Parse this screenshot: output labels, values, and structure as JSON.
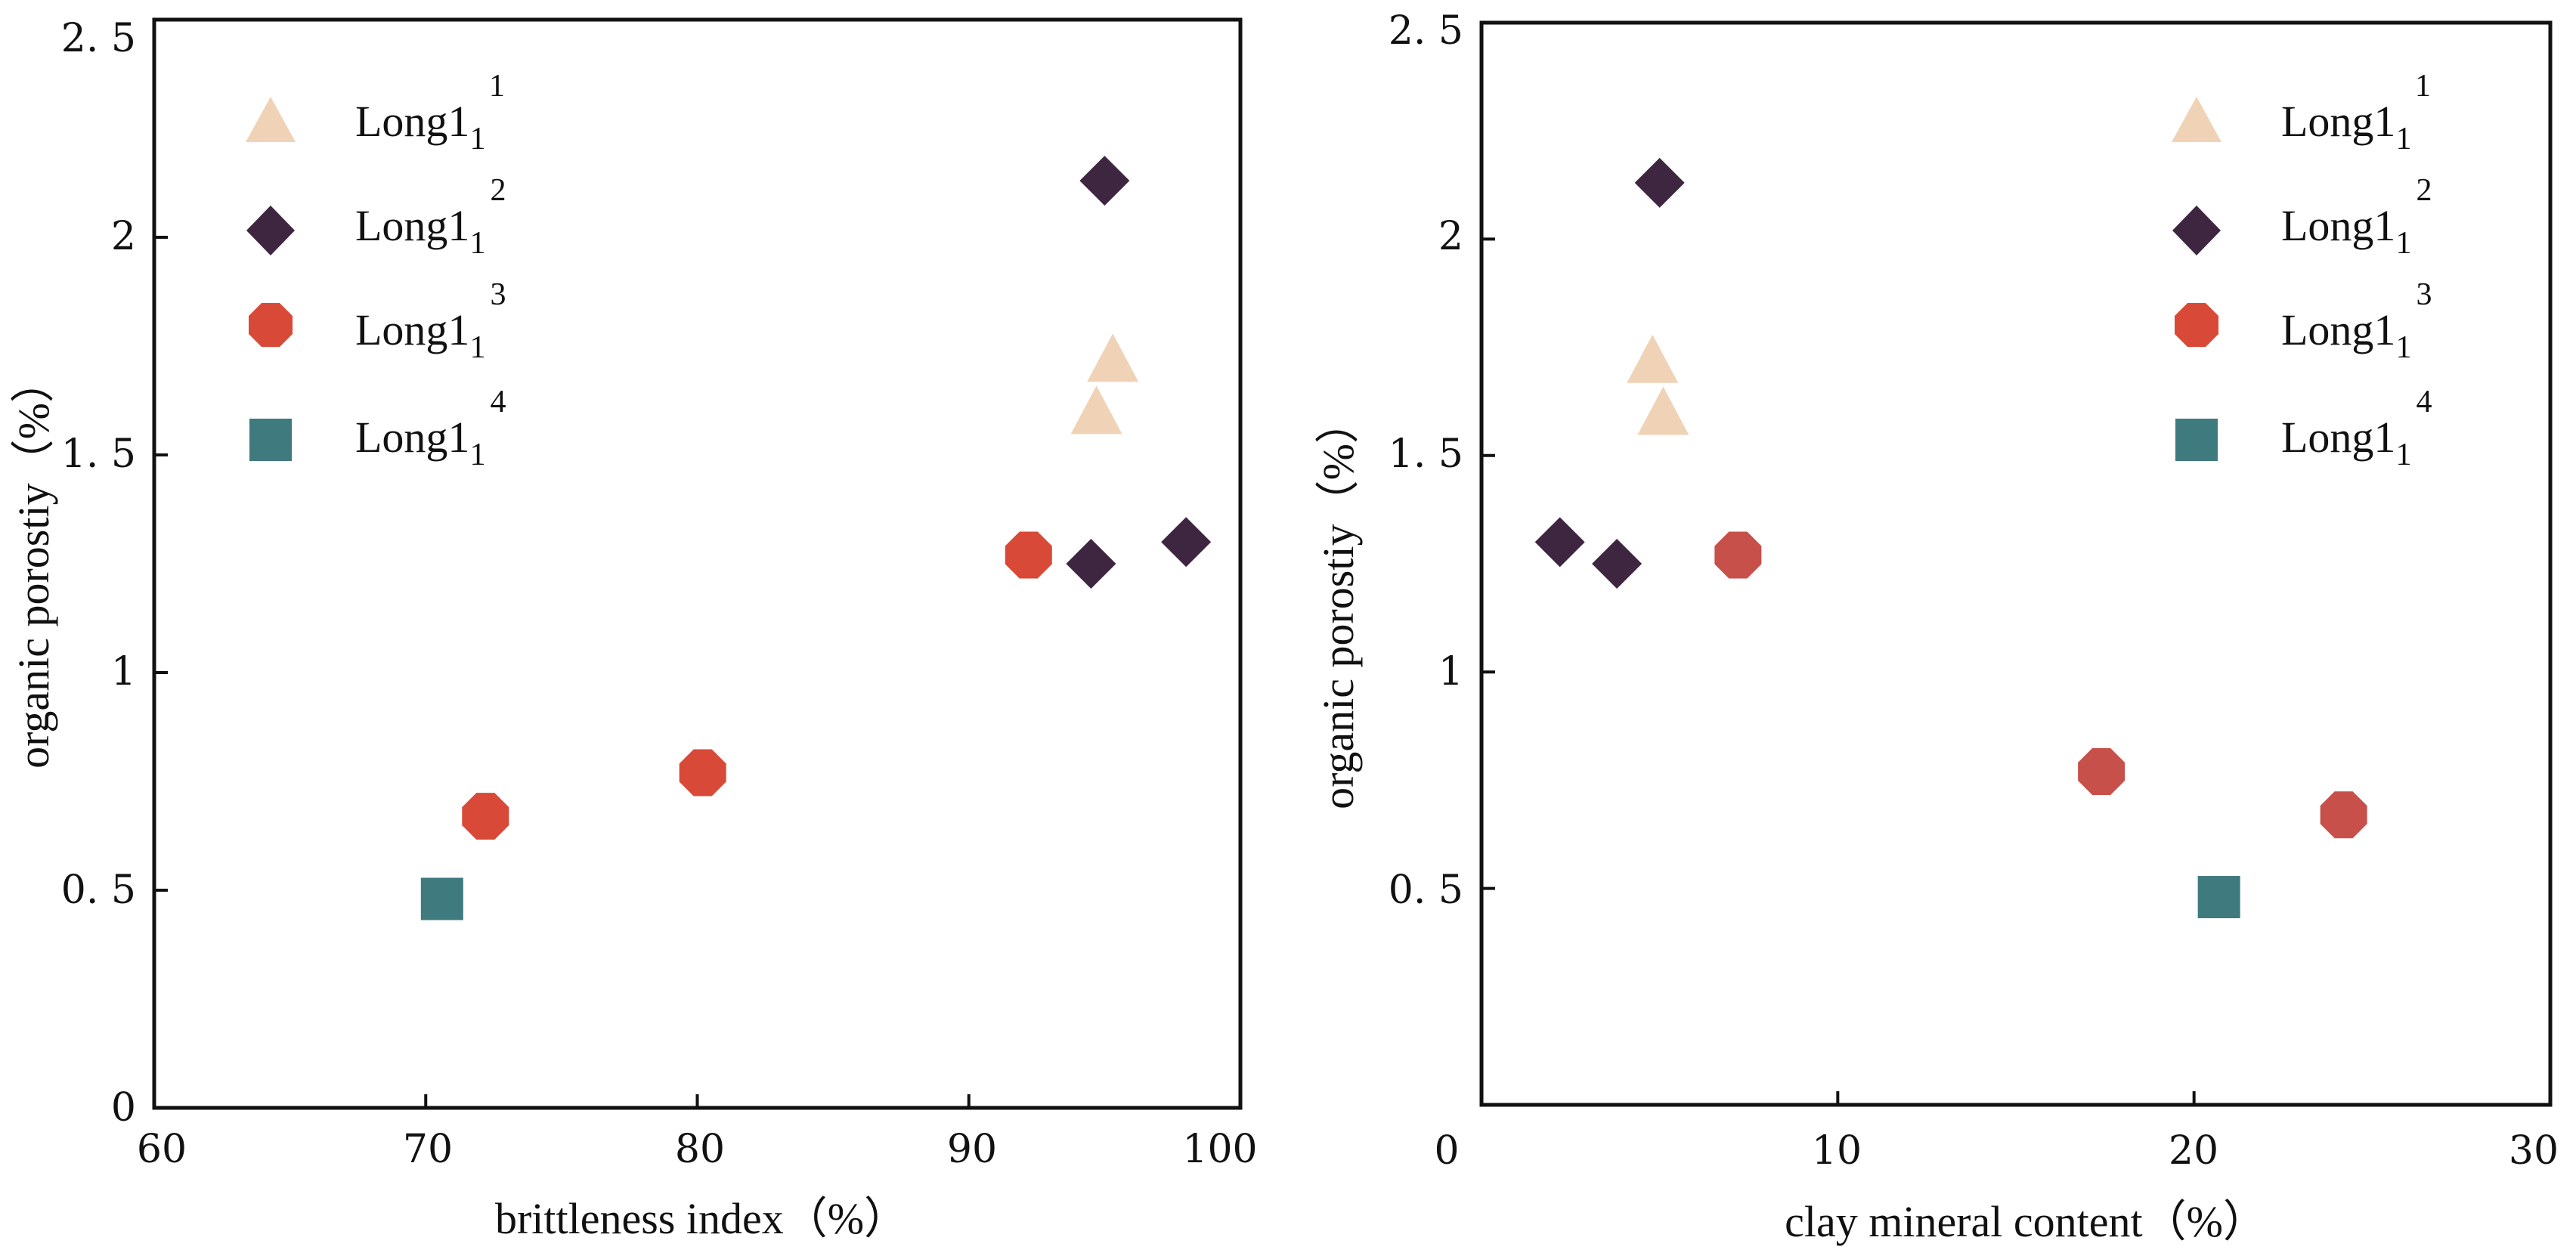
{
  "colors": {
    "long1_1": "#f0d3b6",
    "long1_2": "#3f2640",
    "long1_3": "#d84a37",
    "long1_3_right": "#c8504a",
    "long1_4": "#3f7a7f",
    "axis": "#111111"
  },
  "legend": [
    {
      "key": "long1_1",
      "base": "Long1",
      "sub": "1",
      "sup": "1",
      "marker": "triangle"
    },
    {
      "key": "long1_2",
      "base": "Long1",
      "sub": "1",
      "sup": "2",
      "marker": "diamond"
    },
    {
      "key": "long1_3",
      "base": "Long1",
      "sub": "1",
      "sup": "3",
      "marker": "octagon"
    },
    {
      "key": "long1_4",
      "base": "Long1",
      "sub": "1",
      "sup": "4",
      "marker": "square"
    }
  ],
  "chart_data": [
    {
      "type": "scatter",
      "title": "",
      "xlabel": "brittleness index（%）",
      "ylabel": "organic porostiy（%）",
      "xlim": [
        60,
        100
      ],
      "ylim": [
        0,
        2.5
      ],
      "xticks": [
        60,
        70,
        80,
        90,
        100
      ],
      "xtick_labels": [
        "60",
        "70",
        "80",
        "90",
        "100"
      ],
      "yticks": [
        0,
        0.5,
        1,
        1.5,
        2,
        2.5
      ],
      "ytick_labels": [
        "0",
        "0. 5",
        "1",
        "1. 5",
        "2",
        "2. 5"
      ],
      "legend_position": "top-left",
      "series": [
        {
          "name": "Long1_1^1",
          "key": "long1_1",
          "marker": "triangle",
          "points": [
            [
              95.3,
              1.72
            ],
            [
              94.7,
              1.6
            ]
          ]
        },
        {
          "name": "Long1_1^2",
          "key": "long1_2",
          "marker": "diamond",
          "points": [
            [
              95.0,
              2.13
            ],
            [
              94.5,
              1.25
            ],
            [
              98.0,
              1.3
            ]
          ]
        },
        {
          "name": "Long1_1^3",
          "key": "long1_3",
          "marker": "octagon",
          "points": [
            [
              92.2,
              1.27
            ],
            [
              80.2,
              0.77
            ],
            [
              72.2,
              0.67
            ]
          ]
        },
        {
          "name": "Long1_1^4",
          "key": "long1_4",
          "marker": "square",
          "points": [
            [
              70.6,
              0.48
            ]
          ]
        }
      ]
    },
    {
      "type": "scatter",
      "title": "",
      "xlabel": "clay mineral content（%）",
      "ylabel": "organic porostiy（%）",
      "xlim": [
        0,
        30
      ],
      "ylim": [
        0,
        2.5
      ],
      "xticks": [
        0,
        10,
        20,
        30
      ],
      "xtick_labels": [
        "0",
        "10",
        "20",
        "30"
      ],
      "yticks": [
        0.5,
        1,
        1.5,
        2,
        2.5
      ],
      "ytick_labels": [
        "0. 5",
        "1",
        "1. 5",
        "2",
        "2. 5"
      ],
      "legend_position": "top-right",
      "series": [
        {
          "name": "Long1_1^1",
          "key": "long1_1",
          "marker": "triangle",
          "points": [
            [
              4.8,
              1.72
            ],
            [
              5.1,
              1.6
            ]
          ]
        },
        {
          "name": "Long1_1^2",
          "key": "long1_2",
          "marker": "diamond",
          "points": [
            [
              5.0,
              2.13
            ],
            [
              2.2,
              1.3
            ],
            [
              3.8,
              1.25
            ]
          ]
        },
        {
          "name": "Long1_1^3",
          "key": "long1_3_right",
          "marker": "octagon",
          "points": [
            [
              7.2,
              1.27
            ],
            [
              17.4,
              0.77
            ],
            [
              24.2,
              0.67
            ]
          ]
        },
        {
          "name": "Long1_1^4",
          "key": "long1_4",
          "marker": "square",
          "points": [
            [
              20.7,
              0.48
            ]
          ]
        }
      ]
    }
  ]
}
